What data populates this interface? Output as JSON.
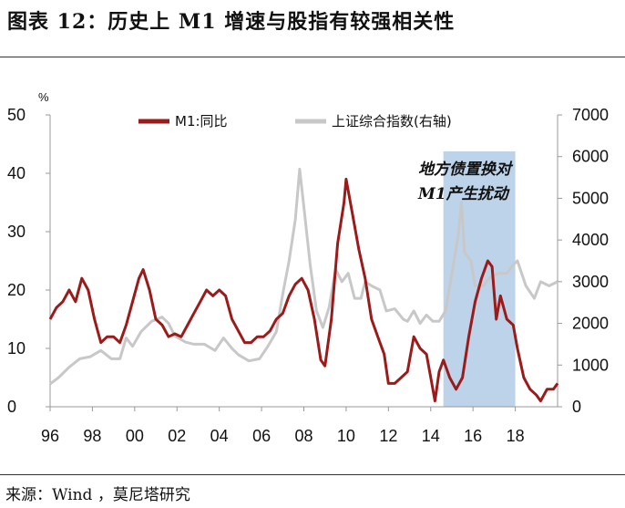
{
  "title": "图表 12：历史上 M1 增速与股指有较强相关性",
  "source": "来源：Wind ，莫尼塔研究",
  "colors": {
    "m1": "#9b1b1b",
    "index": "#c8c8c8",
    "highlight": "#bdd3ea"
  },
  "chart_data": {
    "type": "line",
    "left_axis": {
      "unit": "%",
      "ylim": [
        0,
        50
      ],
      "ticks": [
        "0",
        "10",
        "20",
        "30",
        "40",
        "50"
      ]
    },
    "right_axis": {
      "ylim": [
        0,
        7000
      ],
      "ticks": [
        "0",
        "1000",
        "2000",
        "3000",
        "4000",
        "5000",
        "6000",
        "7000"
      ]
    },
    "x_axis": {
      "xlim": [
        1996,
        2020
      ],
      "ticks": [
        {
          "value": 1996,
          "label": "96"
        },
        {
          "value": 1998,
          "label": "98"
        },
        {
          "value": 2000,
          "label": "00"
        },
        {
          "value": 2002,
          "label": "02"
        },
        {
          "value": 2004,
          "label": "04"
        },
        {
          "value": 2006,
          "label": "06"
        },
        {
          "value": 2008,
          "label": "08"
        },
        {
          "value": 2010,
          "label": "10"
        },
        {
          "value": 2012,
          "label": "12"
        },
        {
          "value": 2014,
          "label": "14"
        },
        {
          "value": 2016,
          "label": "16"
        },
        {
          "value": 2018,
          "label": "18"
        }
      ]
    },
    "legend_position": "top",
    "highlight": {
      "x_range": [
        2014.6,
        2018.0
      ],
      "label_lines": [
        "地方债置换对",
        "M1产生扰动"
      ]
    },
    "series": [
      {
        "name": "M1:同比",
        "axis": "left",
        "color": "#9b1b1b",
        "points": [
          [
            1996.0,
            15
          ],
          [
            1996.3,
            17
          ],
          [
            1996.6,
            18
          ],
          [
            1996.9,
            20
          ],
          [
            1997.2,
            18
          ],
          [
            1997.5,
            22
          ],
          [
            1997.8,
            20
          ],
          [
            1998.1,
            15
          ],
          [
            1998.4,
            11
          ],
          [
            1998.7,
            12
          ],
          [
            1999.0,
            12
          ],
          [
            1999.3,
            11
          ],
          [
            1999.6,
            14
          ],
          [
            1999.9,
            18
          ],
          [
            2000.2,
            22
          ],
          [
            2000.4,
            23.5
          ],
          [
            2000.7,
            20
          ],
          [
            2001.0,
            15
          ],
          [
            2001.3,
            14
          ],
          [
            2001.6,
            12
          ],
          [
            2001.9,
            12.5
          ],
          [
            2002.2,
            12
          ],
          [
            2002.5,
            14
          ],
          [
            2002.8,
            16
          ],
          [
            2003.1,
            18
          ],
          [
            2003.4,
            20
          ],
          [
            2003.7,
            19
          ],
          [
            2004.0,
            20
          ],
          [
            2004.3,
            19
          ],
          [
            2004.6,
            15
          ],
          [
            2004.9,
            13
          ],
          [
            2005.2,
            11
          ],
          [
            2005.5,
            11
          ],
          [
            2005.8,
            12
          ],
          [
            2006.1,
            12
          ],
          [
            2006.4,
            13
          ],
          [
            2006.7,
            15
          ],
          [
            2007.0,
            16
          ],
          [
            2007.3,
            19
          ],
          [
            2007.6,
            21
          ],
          [
            2007.9,
            22
          ],
          [
            2008.2,
            20
          ],
          [
            2008.5,
            15
          ],
          [
            2008.8,
            8
          ],
          [
            2009.0,
            7
          ],
          [
            2009.3,
            15
          ],
          [
            2009.6,
            28
          ],
          [
            2009.9,
            35
          ],
          [
            2010.0,
            39
          ],
          [
            2010.3,
            33
          ],
          [
            2010.6,
            27
          ],
          [
            2010.9,
            22
          ],
          [
            2011.2,
            15
          ],
          [
            2011.5,
            12
          ],
          [
            2011.8,
            9
          ],
          [
            2012.0,
            4
          ],
          [
            2012.3,
            4
          ],
          [
            2012.6,
            5
          ],
          [
            2012.9,
            6
          ],
          [
            2013.2,
            12
          ],
          [
            2013.5,
            10
          ],
          [
            2013.8,
            9
          ],
          [
            2014.0,
            5
          ],
          [
            2014.2,
            1
          ],
          [
            2014.4,
            6
          ],
          [
            2014.6,
            8
          ],
          [
            2014.9,
            5
          ],
          [
            2015.2,
            3
          ],
          [
            2015.5,
            5
          ],
          [
            2015.8,
            12
          ],
          [
            2016.1,
            18
          ],
          [
            2016.4,
            22
          ],
          [
            2016.7,
            25
          ],
          [
            2016.9,
            24
          ],
          [
            2017.1,
            15
          ],
          [
            2017.3,
            19
          ],
          [
            2017.6,
            15
          ],
          [
            2017.9,
            14
          ],
          [
            2018.1,
            10
          ],
          [
            2018.4,
            5
          ],
          [
            2018.7,
            3
          ],
          [
            2019.0,
            2
          ],
          [
            2019.2,
            1
          ],
          [
            2019.5,
            3
          ],
          [
            2019.8,
            3
          ],
          [
            2020.0,
            4
          ]
        ]
      },
      {
        "name": "上证综合指数(右轴)",
        "axis": "right",
        "color": "#c8c8c8",
        "points": [
          [
            1996.0,
            550
          ],
          [
            1996.4,
            700
          ],
          [
            1996.9,
            950
          ],
          [
            1997.4,
            1150
          ],
          [
            1997.9,
            1200
          ],
          [
            1998.4,
            1350
          ],
          [
            1998.9,
            1150
          ],
          [
            1999.3,
            1150
          ],
          [
            1999.6,
            1650
          ],
          [
            1999.9,
            1450
          ],
          [
            2000.3,
            1800
          ],
          [
            2000.8,
            2050
          ],
          [
            2001.3,
            2150
          ],
          [
            2001.6,
            2000
          ],
          [
            2001.9,
            1700
          ],
          [
            2002.4,
            1550
          ],
          [
            2002.8,
            1500
          ],
          [
            2003.3,
            1500
          ],
          [
            2003.8,
            1350
          ],
          [
            2004.2,
            1650
          ],
          [
            2004.6,
            1400
          ],
          [
            2004.9,
            1250
          ],
          [
            2005.4,
            1100
          ],
          [
            2005.9,
            1150
          ],
          [
            2006.3,
            1450
          ],
          [
            2006.7,
            1800
          ],
          [
            2007.0,
            2700
          ],
          [
            2007.3,
            3500
          ],
          [
            2007.6,
            4500
          ],
          [
            2007.8,
            5700
          ],
          [
            2008.0,
            4800
          ],
          [
            2008.3,
            3400
          ],
          [
            2008.6,
            2300
          ],
          [
            2008.9,
            1900
          ],
          [
            2009.2,
            2400
          ],
          [
            2009.5,
            3300
          ],
          [
            2009.8,
            3000
          ],
          [
            2010.1,
            3200
          ],
          [
            2010.4,
            2600
          ],
          [
            2010.7,
            2600
          ],
          [
            2010.9,
            3000
          ],
          [
            2011.2,
            2900
          ],
          [
            2011.6,
            2800
          ],
          [
            2011.9,
            2300
          ],
          [
            2012.3,
            2350
          ],
          [
            2012.7,
            2100
          ],
          [
            2012.9,
            2050
          ],
          [
            2013.2,
            2300
          ],
          [
            2013.5,
            2000
          ],
          [
            2013.8,
            2200
          ],
          [
            2014.1,
            2050
          ],
          [
            2014.4,
            2050
          ],
          [
            2014.7,
            2300
          ],
          [
            2015.0,
            3200
          ],
          [
            2015.3,
            4100
          ],
          [
            2015.45,
            4900
          ],
          [
            2015.6,
            3700
          ],
          [
            2015.9,
            3500
          ],
          [
            2016.1,
            2900
          ],
          [
            2016.5,
            2900
          ],
          [
            2016.8,
            3100
          ],
          [
            2017.2,
            3200
          ],
          [
            2017.6,
            3200
          ],
          [
            2017.9,
            3400
          ],
          [
            2018.1,
            3500
          ],
          [
            2018.5,
            2900
          ],
          [
            2018.9,
            2600
          ],
          [
            2019.2,
            3000
          ],
          [
            2019.6,
            2900
          ],
          [
            2020.0,
            3000
          ]
        ]
      }
    ]
  }
}
